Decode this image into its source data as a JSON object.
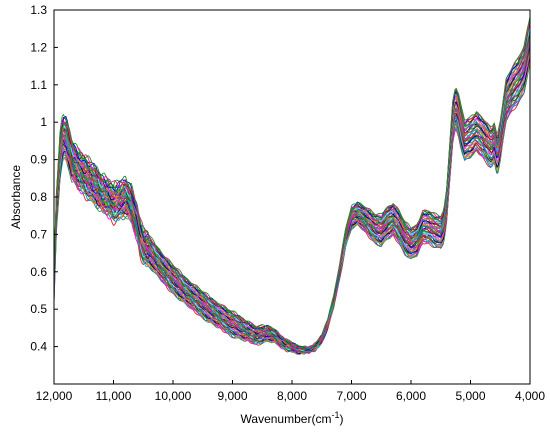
{
  "chart_data": {
    "type": "line",
    "title": "",
    "xlabel": "Wavenumber(cm",
    "xlabel_superscript": "-1",
    "xlabel_suffix": ")",
    "ylabel": "Absorbance",
    "xlim": [
      12000,
      4000
    ],
    "ylim": [
      0.3,
      1.3
    ],
    "x_reversed": true,
    "grid": false,
    "legend": "none",
    "xticks": [
      {
        "value": 12000,
        "label": "12,000"
      },
      {
        "value": 11000,
        "label": "11,000"
      },
      {
        "value": 10000,
        "label": "10,000"
      },
      {
        "value": 9000,
        "label": "9,000"
      },
      {
        "value": 8000,
        "label": "8,000"
      },
      {
        "value": 7000,
        "label": "7,000"
      },
      {
        "value": 6000,
        "label": "6,000"
      },
      {
        "value": 5000,
        "label": "5,000"
      },
      {
        "value": 4000,
        "label": "4,000"
      }
    ],
    "yticks": [
      {
        "value": 0.4,
        "label": "0.4"
      },
      {
        "value": 0.5,
        "label": "0.5"
      },
      {
        "value": 0.6,
        "label": "0.6"
      },
      {
        "value": 0.7,
        "label": "0.7"
      },
      {
        "value": 0.8,
        "label": "0.8"
      },
      {
        "value": 0.9,
        "label": "0.9"
      },
      {
        "value": 1,
        "label": "1"
      },
      {
        "value": 1.1,
        "label": "1.1"
      },
      {
        "value": 1.2,
        "label": "1.2"
      },
      {
        "value": 1.3,
        "label": "1.3"
      }
    ],
    "base_spectrum": {
      "x": [
        12000,
        11960,
        11900,
        11850,
        11800,
        11750,
        11700,
        11600,
        11500,
        11400,
        11300,
        11200,
        11100,
        11000,
        10900,
        10800,
        10700,
        10600,
        10550,
        10500,
        10400,
        10300,
        10200,
        10000,
        9800,
        9600,
        9400,
        9200,
        9000,
        8800,
        8600,
        8400,
        8300,
        8200,
        8100,
        8000,
        7900,
        7800,
        7700,
        7600,
        7500,
        7400,
        7300,
        7200,
        7100,
        7000,
        6900,
        6800,
        6700,
        6600,
        6500,
        6400,
        6300,
        6200,
        6100,
        6000,
        5900,
        5800,
        5700,
        5600,
        5500,
        5450,
        5400,
        5350,
        5300,
        5250,
        5200,
        5150,
        5100,
        5000,
        4900,
        4800,
        4700,
        4650,
        4600,
        4550,
        4500,
        4400,
        4300,
        4200,
        4100,
        4000
      ],
      "y": [
        0.56,
        0.76,
        0.91,
        0.96,
        0.955,
        0.93,
        0.9,
        0.875,
        0.86,
        0.845,
        0.83,
        0.81,
        0.8,
        0.785,
        0.79,
        0.8,
        0.78,
        0.73,
        0.69,
        0.67,
        0.655,
        0.635,
        0.615,
        0.58,
        0.55,
        0.525,
        0.5,
        0.48,
        0.46,
        0.445,
        0.43,
        0.435,
        0.43,
        0.415,
        0.405,
        0.398,
        0.392,
        0.39,
        0.392,
        0.4,
        0.42,
        0.46,
        0.52,
        0.6,
        0.69,
        0.745,
        0.755,
        0.745,
        0.73,
        0.715,
        0.71,
        0.73,
        0.74,
        0.72,
        0.69,
        0.675,
        0.685,
        0.72,
        0.72,
        0.71,
        0.705,
        0.72,
        0.78,
        0.89,
        1.0,
        1.04,
        1.02,
        0.98,
        0.95,
        0.96,
        0.975,
        0.96,
        0.94,
        0.93,
        0.945,
        0.91,
        0.95,
        1.06,
        1.09,
        1.11,
        1.14,
        1.22
      ]
    },
    "series_count": 48,
    "series_offset_range": [
      -0.035,
      0.035
    ],
    "palette": [
      "#d62728",
      "#1f77b4",
      "#2ca02c",
      "#ff00ff",
      "#00bcd4",
      "#ff7f0e",
      "#9467bd",
      "#8c564b",
      "#006400",
      "#000080",
      "#e6194b",
      "#3cb44b",
      "#4363d8",
      "#f58231",
      "#911eb4",
      "#46f0f0",
      "#f032e6",
      "#808000",
      "#008080",
      "#800000",
      "#0000ff",
      "#00a000",
      "#ff1493",
      "#228b22"
    ]
  }
}
